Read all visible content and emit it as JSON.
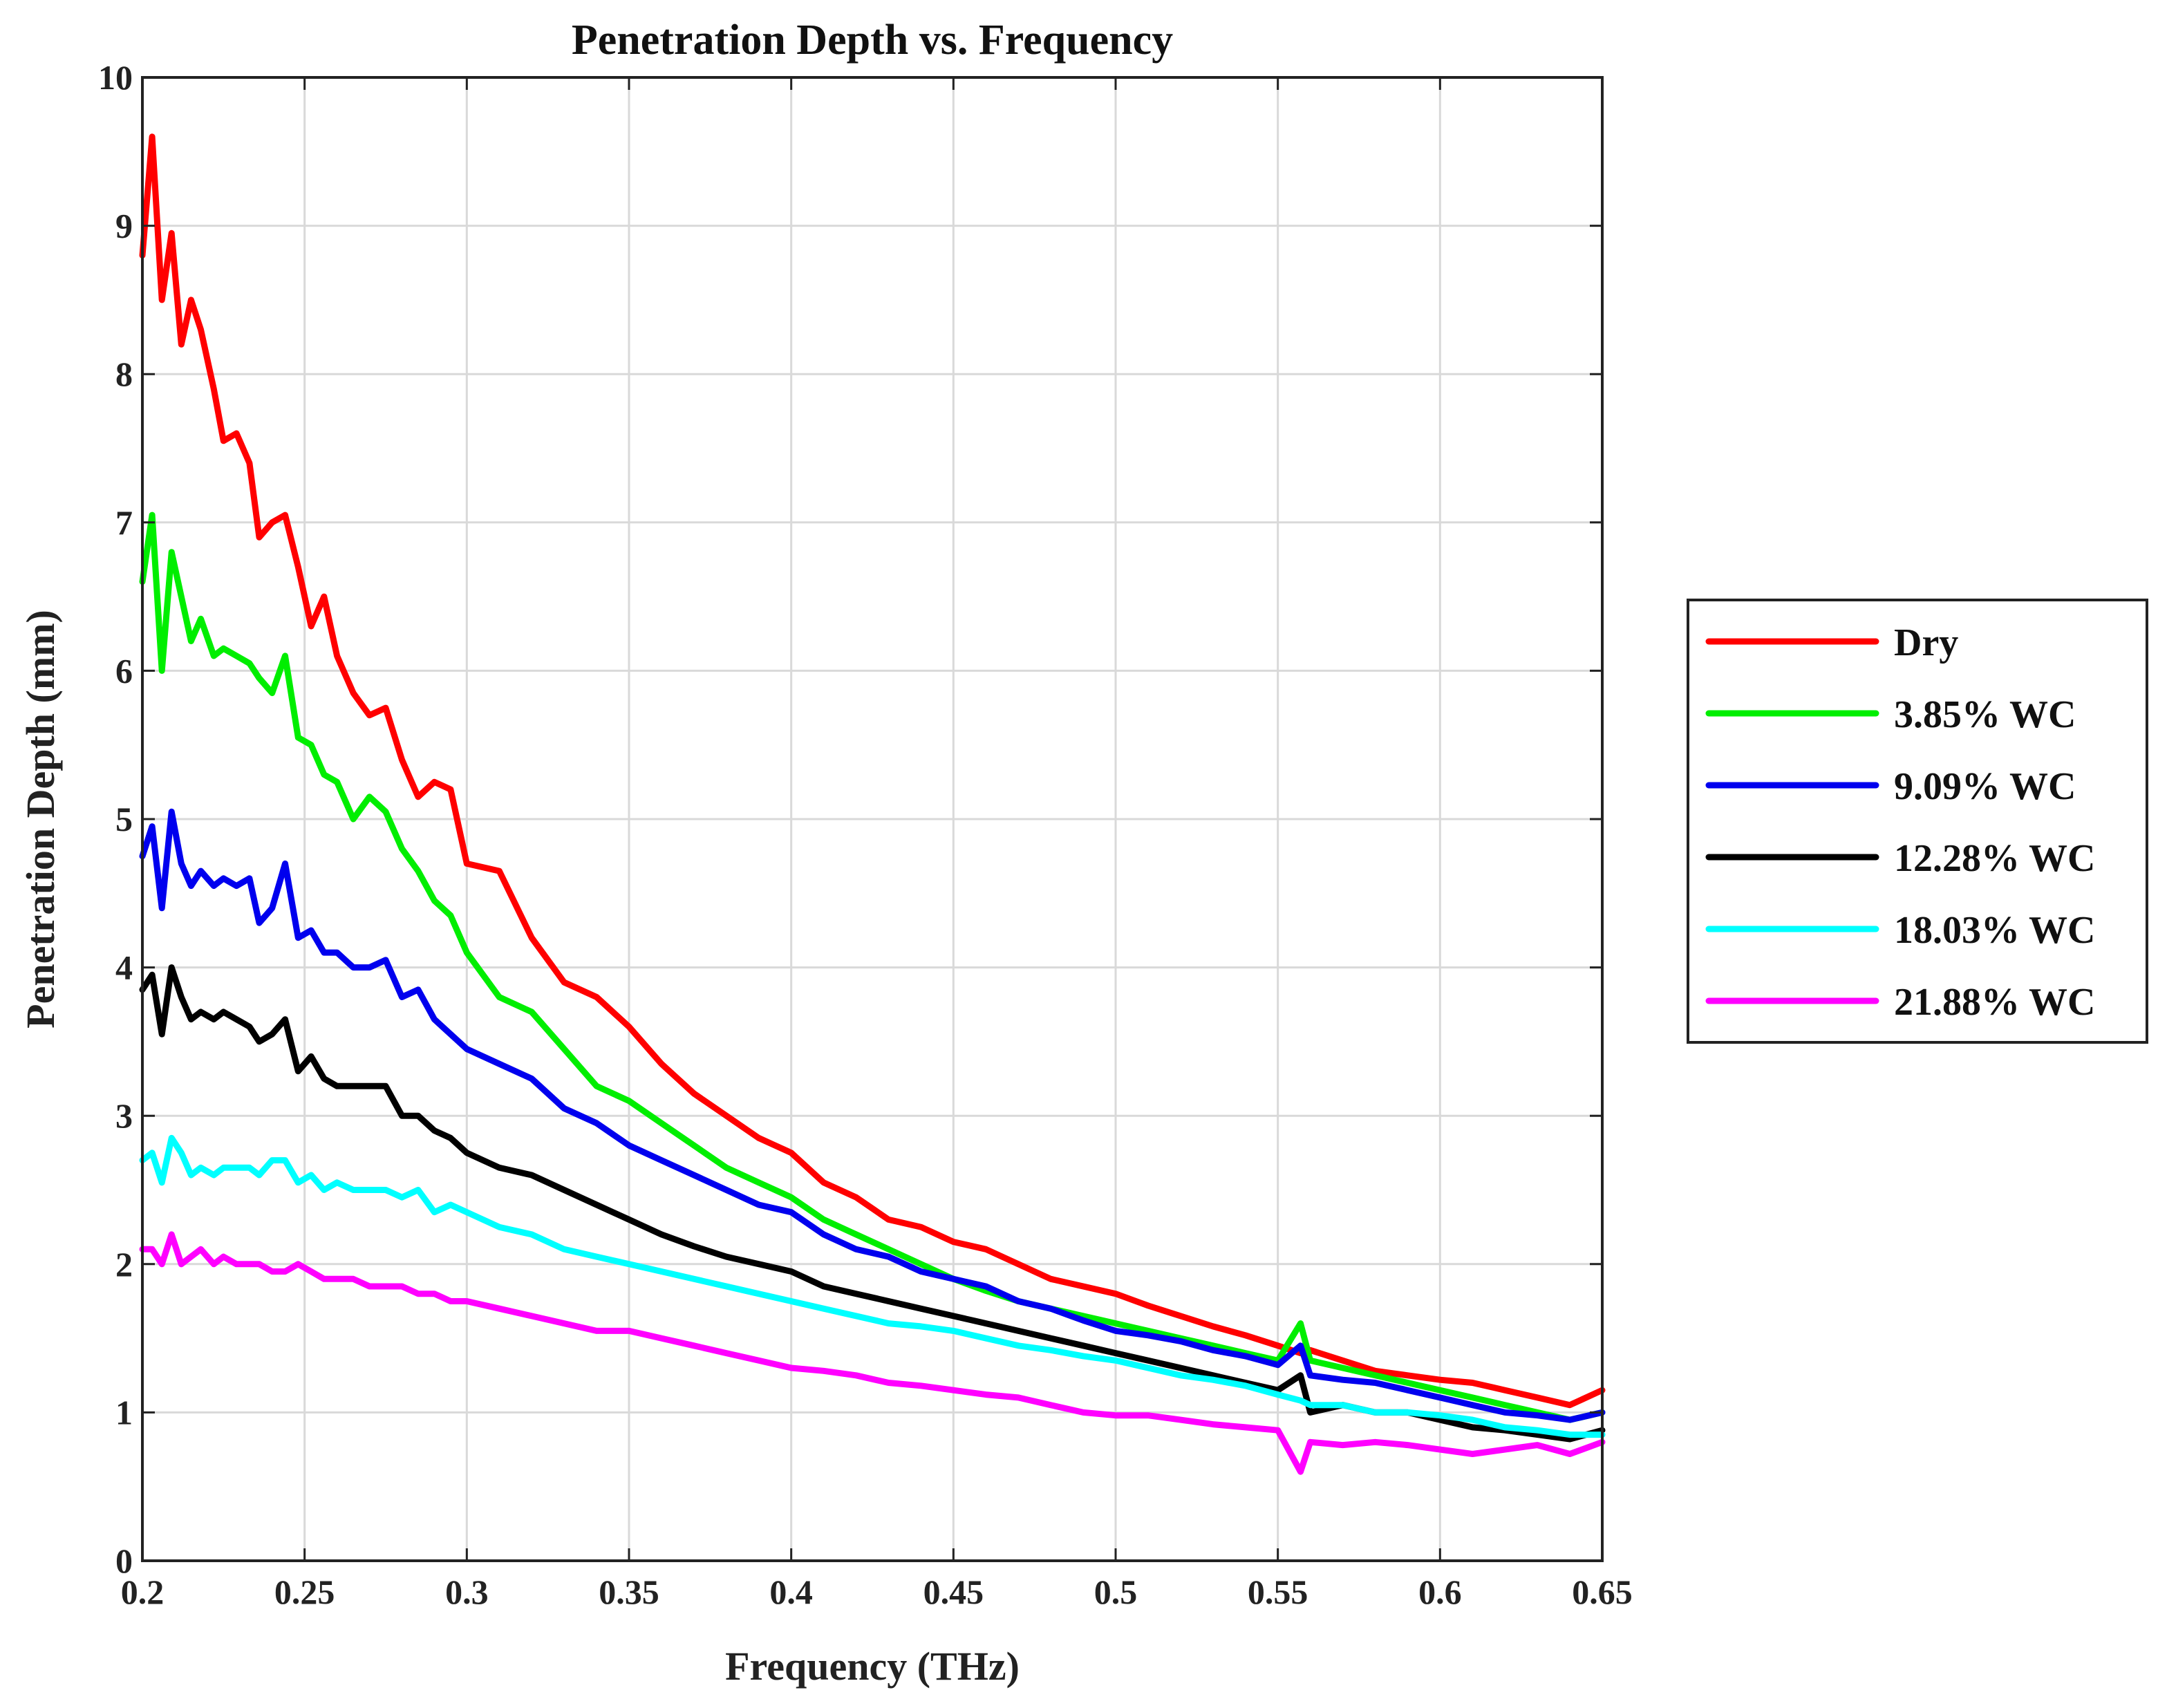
{
  "chart_data": {
    "type": "line",
    "title": "Penetration Depth vs. Frequency",
    "xlabel": "Frequency (THz)",
    "ylabel": "Penetration Depth (mm)",
    "xlim": [
      0.2,
      0.65
    ],
    "ylim": [
      0,
      10
    ],
    "xticks": [
      "0.2",
      "0.25",
      "0.3",
      "0.35",
      "0.4",
      "0.45",
      "0.5",
      "0.55",
      "0.6",
      "0.65"
    ],
    "yticks": [
      "0",
      "1",
      "2",
      "3",
      "4",
      "5",
      "6",
      "7",
      "8",
      "9",
      "10"
    ],
    "grid": true,
    "legend_position": "right",
    "series": [
      {
        "name": "Dry",
        "color": "#ff0000",
        "x": [
          0.2,
          0.203,
          0.206,
          0.209,
          0.212,
          0.215,
          0.218,
          0.222,
          0.225,
          0.229,
          0.233,
          0.236,
          0.24,
          0.244,
          0.248,
          0.252,
          0.256,
          0.26,
          0.265,
          0.27,
          0.275,
          0.28,
          0.285,
          0.29,
          0.295,
          0.3,
          0.31,
          0.32,
          0.33,
          0.34,
          0.35,
          0.36,
          0.37,
          0.38,
          0.39,
          0.4,
          0.41,
          0.42,
          0.43,
          0.44,
          0.45,
          0.46,
          0.47,
          0.48,
          0.49,
          0.5,
          0.51,
          0.52,
          0.53,
          0.54,
          0.55,
          0.557,
          0.56,
          0.57,
          0.58,
          0.59,
          0.6,
          0.61,
          0.62,
          0.63,
          0.64,
          0.65
        ],
        "values": [
          8.8,
          9.6,
          8.5,
          8.95,
          8.2,
          8.5,
          8.3,
          7.9,
          7.55,
          7.6,
          7.4,
          6.9,
          7.0,
          7.05,
          6.7,
          6.3,
          6.5,
          6.1,
          5.85,
          5.7,
          5.75,
          5.4,
          5.15,
          5.25,
          5.2,
          4.7,
          4.65,
          4.2,
          3.9,
          3.8,
          3.6,
          3.35,
          3.15,
          3.0,
          2.85,
          2.75,
          2.55,
          2.45,
          2.3,
          2.25,
          2.15,
          2.1,
          2.0,
          1.9,
          1.85,
          1.8,
          1.72,
          1.65,
          1.58,
          1.52,
          1.45,
          1.4,
          1.42,
          1.35,
          1.28,
          1.25,
          1.22,
          1.2,
          1.15,
          1.1,
          1.05,
          1.15
        ]
      },
      {
        "name": "3.85% WC",
        "color": "#00ee00",
        "x": [
          0.2,
          0.203,
          0.206,
          0.209,
          0.212,
          0.215,
          0.218,
          0.222,
          0.225,
          0.229,
          0.233,
          0.236,
          0.24,
          0.244,
          0.248,
          0.252,
          0.256,
          0.26,
          0.265,
          0.27,
          0.275,
          0.28,
          0.285,
          0.29,
          0.295,
          0.3,
          0.31,
          0.32,
          0.33,
          0.34,
          0.35,
          0.36,
          0.37,
          0.38,
          0.39,
          0.4,
          0.41,
          0.42,
          0.43,
          0.44,
          0.45,
          0.46,
          0.47,
          0.48,
          0.49,
          0.5,
          0.51,
          0.52,
          0.53,
          0.54,
          0.55,
          0.557,
          0.56,
          0.57,
          0.58,
          0.59,
          0.6,
          0.61,
          0.62,
          0.63,
          0.64,
          0.65
        ],
        "values": [
          6.6,
          7.05,
          6.0,
          6.8,
          6.5,
          6.2,
          6.35,
          6.1,
          6.15,
          6.1,
          6.05,
          5.95,
          5.85,
          6.1,
          5.55,
          5.5,
          5.3,
          5.25,
          5.0,
          5.15,
          5.05,
          4.8,
          4.65,
          4.45,
          4.35,
          4.1,
          3.8,
          3.7,
          3.45,
          3.2,
          3.1,
          2.95,
          2.8,
          2.65,
          2.55,
          2.45,
          2.3,
          2.2,
          2.1,
          2.0,
          1.9,
          1.82,
          1.75,
          1.7,
          1.65,
          1.6,
          1.55,
          1.5,
          1.45,
          1.4,
          1.35,
          1.6,
          1.35,
          1.3,
          1.25,
          1.2,
          1.15,
          1.1,
          1.05,
          1.0,
          0.95,
          1.0
        ]
      },
      {
        "name": "9.09% WC",
        "color": "#0000ee",
        "x": [
          0.2,
          0.203,
          0.206,
          0.209,
          0.212,
          0.215,
          0.218,
          0.222,
          0.225,
          0.229,
          0.233,
          0.236,
          0.24,
          0.244,
          0.248,
          0.252,
          0.256,
          0.26,
          0.265,
          0.27,
          0.275,
          0.28,
          0.285,
          0.29,
          0.295,
          0.3,
          0.31,
          0.32,
          0.33,
          0.34,
          0.35,
          0.36,
          0.37,
          0.38,
          0.39,
          0.4,
          0.41,
          0.42,
          0.43,
          0.44,
          0.45,
          0.46,
          0.47,
          0.48,
          0.49,
          0.5,
          0.51,
          0.52,
          0.53,
          0.54,
          0.55,
          0.557,
          0.56,
          0.57,
          0.58,
          0.59,
          0.6,
          0.61,
          0.62,
          0.63,
          0.64,
          0.65
        ],
        "values": [
          4.75,
          4.95,
          4.4,
          5.05,
          4.7,
          4.55,
          4.65,
          4.55,
          4.6,
          4.55,
          4.6,
          4.3,
          4.4,
          4.7,
          4.2,
          4.25,
          4.1,
          4.1,
          4.0,
          4.0,
          4.05,
          3.8,
          3.85,
          3.65,
          3.55,
          3.45,
          3.35,
          3.25,
          3.05,
          2.95,
          2.8,
          2.7,
          2.6,
          2.5,
          2.4,
          2.35,
          2.2,
          2.1,
          2.05,
          1.95,
          1.9,
          1.85,
          1.75,
          1.7,
          1.62,
          1.55,
          1.52,
          1.48,
          1.42,
          1.38,
          1.32,
          1.45,
          1.25,
          1.22,
          1.2,
          1.15,
          1.1,
          1.05,
          1.0,
          0.98,
          0.95,
          1.0
        ]
      },
      {
        "name": "12.28% WC",
        "color": "#000000",
        "x": [
          0.2,
          0.203,
          0.206,
          0.209,
          0.212,
          0.215,
          0.218,
          0.222,
          0.225,
          0.229,
          0.233,
          0.236,
          0.24,
          0.244,
          0.248,
          0.252,
          0.256,
          0.26,
          0.265,
          0.27,
          0.275,
          0.28,
          0.285,
          0.29,
          0.295,
          0.3,
          0.31,
          0.32,
          0.33,
          0.34,
          0.35,
          0.36,
          0.37,
          0.38,
          0.39,
          0.4,
          0.41,
          0.42,
          0.43,
          0.44,
          0.45,
          0.46,
          0.47,
          0.48,
          0.49,
          0.5,
          0.51,
          0.52,
          0.53,
          0.54,
          0.55,
          0.557,
          0.56,
          0.57,
          0.58,
          0.59,
          0.6,
          0.61,
          0.62,
          0.63,
          0.64,
          0.65
        ],
        "values": [
          3.85,
          3.95,
          3.55,
          4.0,
          3.8,
          3.65,
          3.7,
          3.65,
          3.7,
          3.65,
          3.6,
          3.5,
          3.55,
          3.65,
          3.3,
          3.4,
          3.25,
          3.2,
          3.2,
          3.2,
          3.2,
          3.0,
          3.0,
          2.9,
          2.85,
          2.75,
          2.65,
          2.6,
          2.5,
          2.4,
          2.3,
          2.2,
          2.12,
          2.05,
          2.0,
          1.95,
          1.85,
          1.8,
          1.75,
          1.7,
          1.65,
          1.6,
          1.55,
          1.5,
          1.45,
          1.4,
          1.35,
          1.3,
          1.25,
          1.2,
          1.15,
          1.25,
          1.0,
          1.05,
          1.0,
          1.0,
          0.95,
          0.9,
          0.88,
          0.85,
          0.82,
          0.88
        ]
      },
      {
        "name": "18.03% WC",
        "color": "#00ffff",
        "x": [
          0.2,
          0.203,
          0.206,
          0.209,
          0.212,
          0.215,
          0.218,
          0.222,
          0.225,
          0.229,
          0.233,
          0.236,
          0.24,
          0.244,
          0.248,
          0.252,
          0.256,
          0.26,
          0.265,
          0.27,
          0.275,
          0.28,
          0.285,
          0.29,
          0.295,
          0.3,
          0.31,
          0.32,
          0.33,
          0.34,
          0.35,
          0.36,
          0.37,
          0.38,
          0.39,
          0.4,
          0.41,
          0.42,
          0.43,
          0.44,
          0.45,
          0.46,
          0.47,
          0.48,
          0.49,
          0.5,
          0.51,
          0.52,
          0.53,
          0.54,
          0.55,
          0.557,
          0.56,
          0.57,
          0.58,
          0.59,
          0.6,
          0.61,
          0.62,
          0.63,
          0.64,
          0.65
        ],
        "values": [
          2.7,
          2.75,
          2.55,
          2.85,
          2.75,
          2.6,
          2.65,
          2.6,
          2.65,
          2.65,
          2.65,
          2.6,
          2.7,
          2.7,
          2.55,
          2.6,
          2.5,
          2.55,
          2.5,
          2.5,
          2.5,
          2.45,
          2.5,
          2.35,
          2.4,
          2.35,
          2.25,
          2.2,
          2.1,
          2.05,
          2.0,
          1.95,
          1.9,
          1.85,
          1.8,
          1.75,
          1.7,
          1.65,
          1.6,
          1.58,
          1.55,
          1.5,
          1.45,
          1.42,
          1.38,
          1.35,
          1.3,
          1.25,
          1.22,
          1.18,
          1.12,
          1.08,
          1.05,
          1.05,
          1.0,
          1.0,
          0.98,
          0.95,
          0.9,
          0.88,
          0.85,
          0.85
        ]
      },
      {
        "name": "21.88% WC",
        "color": "#ff00ff",
        "x": [
          0.2,
          0.203,
          0.206,
          0.209,
          0.212,
          0.215,
          0.218,
          0.222,
          0.225,
          0.229,
          0.233,
          0.236,
          0.24,
          0.244,
          0.248,
          0.252,
          0.256,
          0.26,
          0.265,
          0.27,
          0.275,
          0.28,
          0.285,
          0.29,
          0.295,
          0.3,
          0.31,
          0.32,
          0.33,
          0.34,
          0.35,
          0.36,
          0.37,
          0.38,
          0.39,
          0.4,
          0.41,
          0.42,
          0.43,
          0.44,
          0.45,
          0.46,
          0.47,
          0.48,
          0.49,
          0.5,
          0.51,
          0.52,
          0.53,
          0.54,
          0.55,
          0.557,
          0.56,
          0.57,
          0.58,
          0.59,
          0.6,
          0.61,
          0.62,
          0.63,
          0.64,
          0.65
        ],
        "values": [
          2.1,
          2.1,
          2.0,
          2.2,
          2.0,
          2.05,
          2.1,
          2.0,
          2.05,
          2.0,
          2.0,
          2.0,
          1.95,
          1.95,
          2.0,
          1.95,
          1.9,
          1.9,
          1.9,
          1.85,
          1.85,
          1.85,
          1.8,
          1.8,
          1.75,
          1.75,
          1.7,
          1.65,
          1.6,
          1.55,
          1.55,
          1.5,
          1.45,
          1.4,
          1.35,
          1.3,
          1.28,
          1.25,
          1.2,
          1.18,
          1.15,
          1.12,
          1.1,
          1.05,
          1.0,
          0.98,
          0.98,
          0.95,
          0.92,
          0.9,
          0.88,
          0.6,
          0.8,
          0.78,
          0.8,
          0.78,
          0.75,
          0.72,
          0.75,
          0.78,
          0.72,
          0.8
        ]
      }
    ]
  }
}
